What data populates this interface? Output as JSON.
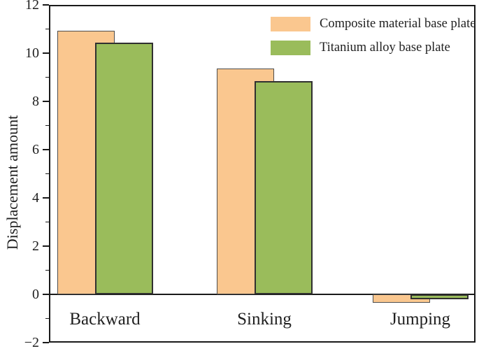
{
  "chart_data": {
    "type": "bar",
    "title": "",
    "xlabel": "",
    "ylabel": "Displacement amount",
    "categories": [
      "Backward",
      "Sinking",
      "Jumping"
    ],
    "series": [
      {
        "name": "Composite material base plate",
        "color": "#FAC78F",
        "edge_color": "#4D4D4D",
        "values": [
          10.93,
          9.35,
          -0.36
        ]
      },
      {
        "name": "Titanium alloy base plate",
        "color": "#9ABC5B",
        "edge_color": "#303030",
        "values": [
          10.43,
          8.85,
          -0.21
        ]
      }
    ],
    "ylim": [
      -2,
      12
    ],
    "yticks_major": [
      -2,
      0,
      2,
      4,
      6,
      8,
      10,
      12
    ],
    "ytick_labels": [
      "−2",
      "0",
      "2",
      "4",
      "6",
      "8",
      "10",
      "12"
    ],
    "yticks_minor": [
      -1,
      1,
      3,
      5,
      7,
      9,
      11
    ],
    "grid": false,
    "legend_position": "top-right",
    "bar_style": "overlapped",
    "axis_color": "#1A1A1A",
    "text_color": "#1F1F1F",
    "background": "#FFFFFF"
  }
}
